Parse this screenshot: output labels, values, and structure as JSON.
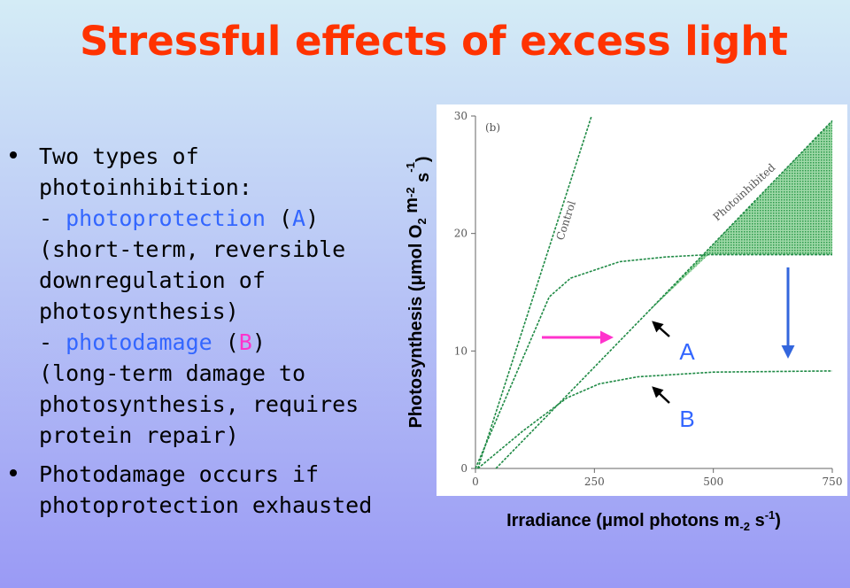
{
  "header": {
    "title": "Stressful effects of excess light"
  },
  "bullets": [
    {
      "lines": [
        [
          {
            "text": "Two types of"
          }
        ],
        [
          {
            "text": "photoinhibition:"
          }
        ],
        [
          {
            "text": "- "
          },
          {
            "text": "photoprotection",
            "color": "#3366ff"
          },
          {
            "text": " ("
          },
          {
            "text": "A",
            "color": "#3366ff"
          },
          {
            "text": ")"
          }
        ],
        [
          {
            "text": "(short-term, reversible"
          }
        ],
        [
          {
            "text": "downregulation of"
          }
        ],
        [
          {
            "text": "photosynthesis)"
          }
        ],
        [
          {
            "text": "- "
          },
          {
            "text": "photodamage",
            "color": "#3366ff"
          },
          {
            "text": " ("
          },
          {
            "text": "B",
            "color": "#ff33cc"
          },
          {
            "text": ")"
          }
        ],
        [
          {
            "text": "(long-term damage to"
          }
        ],
        [
          {
            "text": "photosynthesis, requires"
          }
        ],
        [
          {
            "text": "protein repair)"
          }
        ]
      ]
    },
    {
      "lines": [
        [
          {
            "text": "Photodamage occurs if"
          }
        ],
        [
          {
            "text": "photoprotection exhausted"
          }
        ]
      ]
    }
  ],
  "chart_data": {
    "type": "line",
    "panel_label": "(b)",
    "y_label": [
      "Photosynthesis (μmol O",
      "2",
      " m",
      "-2",
      " s",
      "-1",
      ")"
    ],
    "x_label": [
      "Irradiance (μmol photons m",
      "-2",
      " s",
      "-1",
      ")"
    ],
    "xlim": [
      0,
      750
    ],
    "ylim": [
      0,
      30
    ],
    "xticks": [
      0,
      250,
      500,
      750
    ],
    "yticks": [
      0,
      10,
      20,
      30
    ],
    "color": "#1f8a45",
    "annotations": [
      "Control",
      "Photoinhibited",
      "A",
      "B"
    ],
    "series": [
      {
        "x": [
          5,
          244
        ],
        "values": [
          0,
          30
        ]
      },
      {
        "x": [
          43,
          350,
          750
        ],
        "values": [
          0,
          12.8,
          29.6
        ]
      },
      {
        "x": [
          0,
          155,
          200,
          303,
          400,
          490,
          750
        ],
        "values": [
          0,
          14.6,
          16.2,
          17.6,
          18,
          18.2,
          18.2
        ]
      },
      {
        "x": [
          5,
          100,
          192,
          260,
          341,
          500,
          750
        ],
        "values": [
          0,
          3.2,
          6,
          7.2,
          7.8,
          8.2,
          8.3
        ]
      }
    ]
  }
}
